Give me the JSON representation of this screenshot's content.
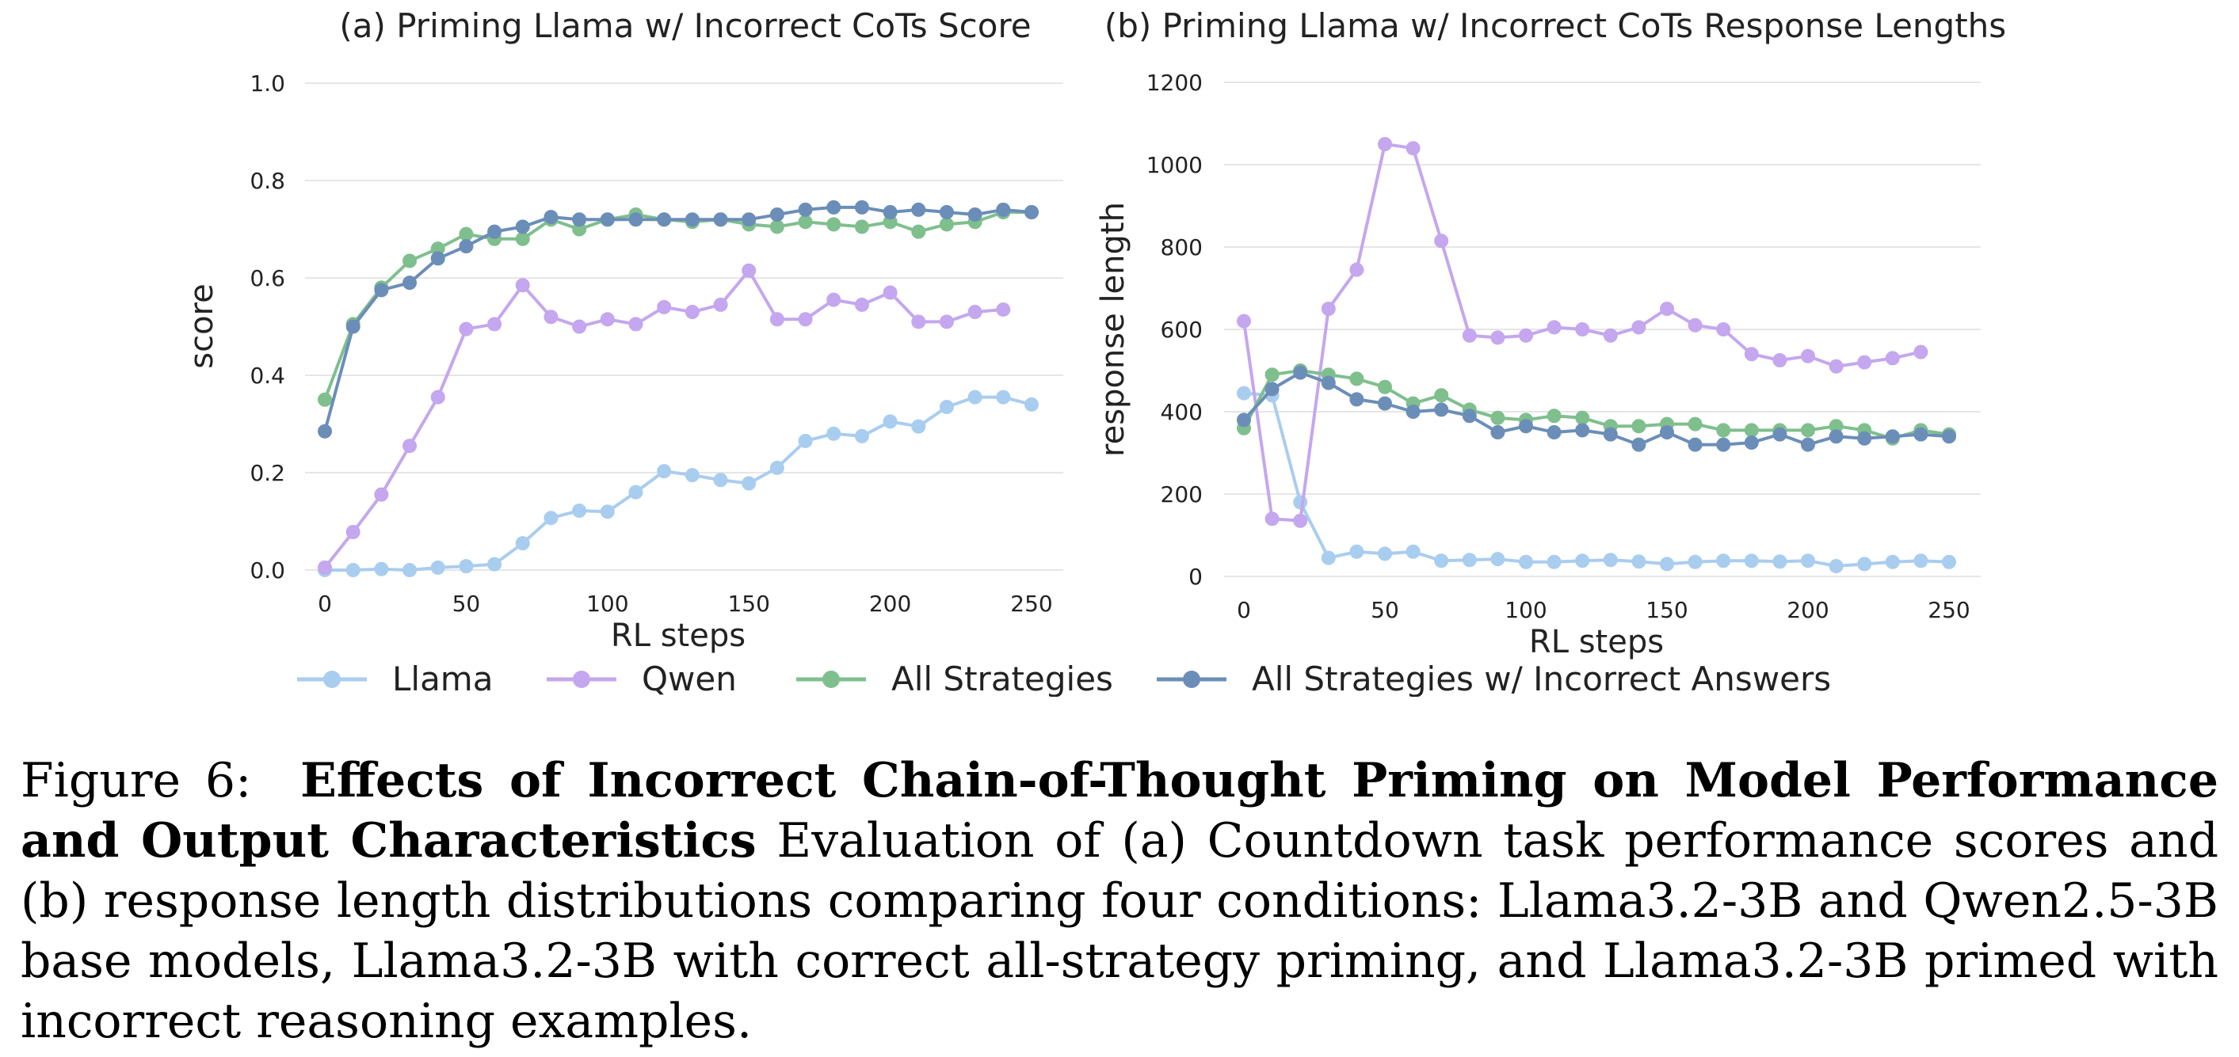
{
  "chart_data": [
    {
      "type": "line",
      "title": "(a) Priming Llama w/ Incorrect CoTs Score",
      "xlabel": "RL steps",
      "ylabel": "score",
      "xlim": [
        0,
        250
      ],
      "ylim": [
        0,
        1.0
      ],
      "xticks": [
        0,
        50,
        100,
        150,
        200,
        250
      ],
      "yticks": [
        0.0,
        0.2,
        0.4,
        0.6,
        0.8,
        1.0
      ],
      "ytick_labels": [
        "0.0",
        "0.2",
        "0.4",
        "0.6",
        "0.8",
        "1.0"
      ],
      "grid": true,
      "series": [
        {
          "name": "Llama",
          "color": "#a9cdef",
          "x": [
            0,
            10,
            20,
            30,
            40,
            50,
            60,
            70,
            80,
            90,
            100,
            110,
            120,
            130,
            140,
            150,
            160,
            170,
            180,
            190,
            200,
            210,
            220,
            230,
            240,
            250
          ],
          "y": [
            0.0,
            0.0,
            0.002,
            0.0,
            0.005,
            0.008,
            0.012,
            0.055,
            0.107,
            0.122,
            0.12,
            0.16,
            0.203,
            0.195,
            0.185,
            0.178,
            0.21,
            0.265,
            0.28,
            0.275,
            0.305,
            0.295,
            0.335,
            0.355,
            0.355,
            0.34
          ]
        },
        {
          "name": "Qwen",
          "color": "#c4a7ee",
          "x": [
            0,
            10,
            20,
            30,
            40,
            50,
            60,
            70,
            80,
            90,
            100,
            110,
            120,
            130,
            140,
            150,
            160,
            170,
            180,
            190,
            200,
            210,
            220,
            230,
            240
          ],
          "y": [
            0.005,
            0.078,
            0.155,
            0.255,
            0.355,
            0.495,
            0.505,
            0.585,
            0.52,
            0.5,
            0.515,
            0.505,
            0.54,
            0.53,
            0.545,
            0.615,
            0.515,
            0.515,
            0.555,
            0.545,
            0.57,
            0.51,
            0.51,
            0.53,
            0.535
          ]
        },
        {
          "name": "All Strategies",
          "color": "#7fbf8d",
          "x": [
            0,
            10,
            20,
            30,
            40,
            50,
            60,
            70,
            80,
            90,
            100,
            110,
            120,
            130,
            140,
            150,
            160,
            170,
            180,
            190,
            200,
            210,
            220,
            230,
            240,
            250
          ],
          "y": [
            0.35,
            0.505,
            0.58,
            0.635,
            0.66,
            0.69,
            0.68,
            0.68,
            0.72,
            0.7,
            0.72,
            0.73,
            0.72,
            0.715,
            0.72,
            0.71,
            0.705,
            0.715,
            0.71,
            0.705,
            0.715,
            0.695,
            0.71,
            0.715,
            0.735,
            0.735
          ]
        },
        {
          "name": "All Strategies w/ Incorrect Answers",
          "color": "#6b8eb8",
          "x": [
            0,
            10,
            20,
            30,
            40,
            50,
            60,
            70,
            80,
            90,
            100,
            110,
            120,
            130,
            140,
            150,
            160,
            170,
            180,
            190,
            200,
            210,
            220,
            230,
            240,
            250
          ],
          "y": [
            0.285,
            0.5,
            0.575,
            0.59,
            0.64,
            0.665,
            0.695,
            0.705,
            0.725,
            0.72,
            0.72,
            0.72,
            0.72,
            0.72,
            0.72,
            0.72,
            0.73,
            0.74,
            0.745,
            0.745,
            0.735,
            0.74,
            0.735,
            0.73,
            0.74,
            0.735
          ]
        }
      ]
    },
    {
      "type": "line",
      "title": "(b) Priming Llama w/ Incorrect CoTs Response Lengths",
      "xlabel": "RL steps",
      "ylabel": "response length",
      "xlim": [
        0,
        250
      ],
      "ylim": [
        0,
        1200
      ],
      "xticks": [
        0,
        50,
        100,
        150,
        200,
        250
      ],
      "yticks": [
        0,
        200,
        400,
        600,
        800,
        1000,
        1200
      ],
      "ytick_labels": [
        "0",
        "200",
        "400",
        "600",
        "800",
        "1000",
        "1200"
      ],
      "grid": true,
      "series": [
        {
          "name": "Llama",
          "color": "#a9cdef",
          "x": [
            0,
            10,
            20,
            30,
            40,
            50,
            60,
            70,
            80,
            90,
            100,
            110,
            120,
            130,
            140,
            150,
            160,
            170,
            180,
            190,
            200,
            210,
            220,
            230,
            240,
            250
          ],
          "y": [
            445,
            440,
            180,
            45,
            60,
            55,
            60,
            38,
            40,
            42,
            35,
            35,
            38,
            40,
            36,
            30,
            35,
            38,
            38,
            36,
            38,
            25,
            30,
            35,
            38,
            35
          ]
        },
        {
          "name": "Qwen",
          "color": "#c4a7ee",
          "x": [
            0,
            10,
            20,
            30,
            40,
            50,
            60,
            70,
            80,
            90,
            100,
            110,
            120,
            130,
            140,
            150,
            160,
            170,
            180,
            190,
            200,
            210,
            220,
            230,
            240
          ],
          "y": [
            620,
            140,
            135,
            650,
            745,
            1050,
            1040,
            815,
            585,
            580,
            585,
            605,
            600,
            585,
            605,
            650,
            610,
            600,
            540,
            525,
            535,
            510,
            520,
            530,
            545
          ]
        },
        {
          "name": "All Strategies",
          "color": "#7fbf8d",
          "x": [
            0,
            10,
            20,
            30,
            40,
            50,
            60,
            70,
            80,
            90,
            100,
            110,
            120,
            130,
            140,
            150,
            160,
            170,
            180,
            190,
            200,
            210,
            220,
            230,
            240,
            250
          ],
          "y": [
            360,
            490,
            500,
            490,
            480,
            460,
            420,
            440,
            405,
            385,
            380,
            390,
            385,
            365,
            365,
            370,
            370,
            355,
            355,
            355,
            355,
            365,
            355,
            335,
            355,
            345
          ]
        },
        {
          "name": "All Strategies w/ Incorrect Answers",
          "color": "#6b8eb8",
          "x": [
            0,
            10,
            20,
            30,
            40,
            50,
            60,
            70,
            80,
            90,
            100,
            110,
            120,
            130,
            140,
            150,
            160,
            170,
            180,
            190,
            200,
            210,
            220,
            230,
            240,
            250
          ],
          "y": [
            380,
            455,
            495,
            470,
            430,
            420,
            400,
            405,
            390,
            350,
            365,
            350,
            355,
            345,
            320,
            350,
            320,
            320,
            325,
            345,
            320,
            340,
            335,
            340,
            345,
            340
          ]
        }
      ]
    }
  ],
  "legend": {
    "placement": "bottom",
    "entries": [
      {
        "label": "Llama",
        "color": "#a9cdef"
      },
      {
        "label": "Qwen",
        "color": "#c4a7ee"
      },
      {
        "label": "All Strategies",
        "color": "#7fbf8d"
      },
      {
        "label": "All Strategies w/ Incorrect Answers",
        "color": "#6b8eb8"
      }
    ]
  },
  "caption": {
    "prefix": "Figure 6:",
    "bold": "Effects of Incorrect Chain-of-Thought Priming on Model Performance and Output Characteristics",
    "body": "Evaluation of (a) Countdown task performance scores and (b) response length distributions comparing four conditions: Llama3.2-3B and Qwen2.5-3B base models, Llama3.2-3B with correct all-strategy priming, and Llama3.2-3B primed with incorrect reasoning examples."
  }
}
